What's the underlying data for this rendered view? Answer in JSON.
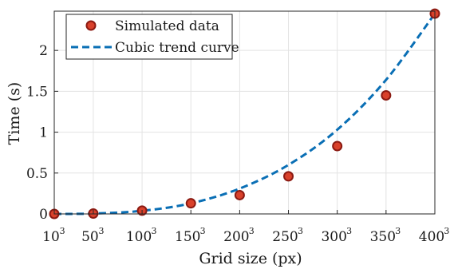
{
  "chart_data": {
    "type": "scatter",
    "xlabel": "Grid size (px)",
    "ylabel": "Time (s)",
    "x_tick_base": [
      "10",
      "50",
      "100",
      "150",
      "200",
      "250",
      "300",
      "350",
      "400"
    ],
    "x_tick_exp": "3",
    "x": [
      10,
      50,
      100,
      150,
      200,
      250,
      300,
      350,
      400
    ],
    "xlim": [
      10,
      400
    ],
    "ylim": [
      0,
      2.48
    ],
    "y_ticks": [
      0,
      0.5,
      1,
      1.5,
      2
    ],
    "y_tick_labels": [
      "0",
      "0.5",
      "1",
      "1.5",
      "2"
    ],
    "grid": true,
    "legend_position": "top-left",
    "series": [
      {
        "name": "Simulated data",
        "kind": "markers",
        "x": [
          10,
          50,
          100,
          150,
          200,
          250,
          300,
          350,
          400
        ],
        "y": [
          0.0,
          0.005,
          0.04,
          0.13,
          0.23,
          0.46,
          0.83,
          1.45,
          2.45
        ],
        "color_fill": "#d9412b",
        "color_edge": "#8b1a12"
      },
      {
        "name": "Cubic trend curve",
        "kind": "dashed-line",
        "x": [
          10,
          50,
          100,
          150,
          200,
          250,
          300,
          350,
          400
        ],
        "y": [
          0.0,
          0.0048,
          0.038,
          0.13,
          0.31,
          0.6,
          1.03,
          1.64,
          2.45
        ],
        "color": "#0a6fb5"
      }
    ]
  }
}
